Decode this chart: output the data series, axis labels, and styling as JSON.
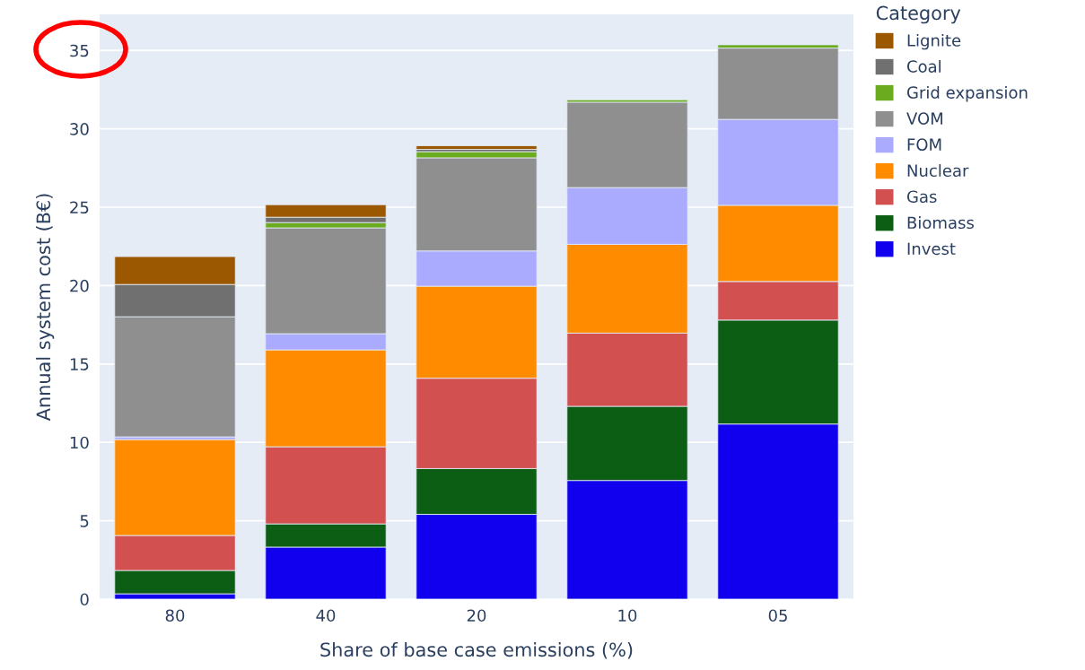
{
  "chart_data": {
    "type": "bar",
    "stacked": true,
    "xlabel": "Share of base case emissions (%)",
    "ylabel": "Annual system cost (B€)",
    "legend_title": "Category",
    "categories": [
      "80",
      "40",
      "20",
      "10",
      "05"
    ],
    "series": [
      {
        "name": "Invest",
        "color": "#1000ee",
        "values": [
          0.34,
          3.32,
          5.41,
          7.57,
          11.17
        ]
      },
      {
        "name": "Biomass",
        "color": "#0c5e15",
        "values": [
          1.49,
          1.48,
          2.92,
          4.73,
          6.63
        ]
      },
      {
        "name": "Gas",
        "color": "#d35050",
        "values": [
          2.23,
          4.92,
          5.76,
          4.67,
          2.46
        ]
      },
      {
        "name": "Nuclear",
        "color": "#ff8c00",
        "values": [
          6.12,
          6.18,
          5.87,
          5.66,
          4.86
        ]
      },
      {
        "name": "FOM",
        "color": "#aaaaff",
        "values": [
          0.17,
          1.03,
          2.25,
          3.62,
          5.48
        ]
      },
      {
        "name": "VOM",
        "color": "#8f8f8f",
        "values": [
          7.66,
          6.75,
          5.94,
          5.45,
          4.55
        ]
      },
      {
        "name": "Grid expansion",
        "color": "#6bab1f",
        "values": [
          0,
          0.34,
          0.39,
          0.15,
          0.21
        ]
      },
      {
        "name": "Coal",
        "color": "#707070",
        "values": [
          2.06,
          0.34,
          0.15,
          0,
          0
        ]
      },
      {
        "name": "Lignite",
        "color": "#9c5800",
        "values": [
          1.78,
          0.8,
          0.23,
          0,
          0
        ]
      }
    ],
    "ylim": [
      0,
      37.3
    ],
    "yticks": [
      0,
      5,
      10,
      15,
      20,
      25,
      30,
      35
    ],
    "grid": "y",
    "legend": "right"
  }
}
